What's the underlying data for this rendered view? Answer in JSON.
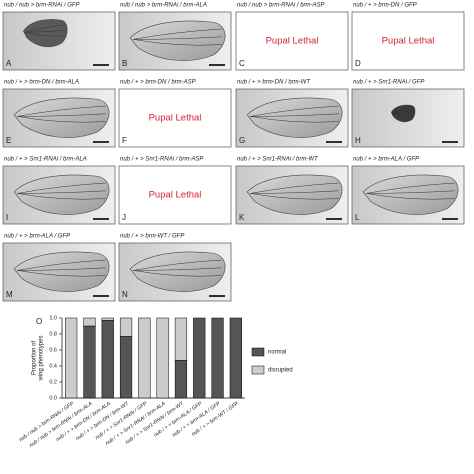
{
  "panels": [
    {
      "label": "nub / nub > brm-RNAi / GFP",
      "letter": "A"
    },
    {
      "label": "nub / nub > brm-RNAi / brm-ALA",
      "letter": "B"
    },
    {
      "label": "nub / nub > brm-RNAi / brm-ASP",
      "letter": "C",
      "note": "Pupal Lethal"
    },
    {
      "label": "nub / + > brm-DN / GFP",
      "letter": "D",
      "note": "Pupal Lethal"
    },
    {
      "label": "nub / + > brm-DN / brm-ALA",
      "letter": "E"
    },
    {
      "label": "nub / + > brm-DN / brm-ASP",
      "letter": "F",
      "note": "Pupal Lethal"
    },
    {
      "label": "nub / + > brm-DN / brm-WT",
      "letter": "G"
    },
    {
      "label": "nub / + > Snr1-RNAi / GFP",
      "letter": "H"
    },
    {
      "label": "nub / + > Snr1-RNAi / brm-ALA",
      "letter": "I"
    },
    {
      "label": "nub / + > Snr1-RNAi / brm-ASP",
      "letter": "J",
      "note": "Pupal Lethal"
    },
    {
      "label": "nub / + > Snr1-RNAi / brm-WT",
      "letter": "K"
    },
    {
      "label": "nub / + > brm-ALA / GFP",
      "letter": "L"
    },
    {
      "label": "nub / + > brm-ALA / GFP",
      "letter": "M"
    },
    {
      "label": "nub / + > brm-WT / GFP",
      "letter": "N"
    }
  ],
  "chart_data": {
    "type": "bar",
    "stacked": true,
    "panel_letter": "O",
    "y_label": [
      "Proportion of",
      "wing phenotypes"
    ],
    "categories": [
      "nub / nub > brm-RNAi / GFP",
      "nub / nub > brm-RNAi / brm-ALA",
      "nub / + > brm-DN / brm-ALA",
      "nub / + > brm-DN / brm-WT",
      "nub / + > Snr1-RNAi / GFP",
      "nub / + > Snr1-RNAi / brm-ALA",
      "nub / + > Snr1-RNAi / brm-WT",
      "nub / + > brm-ALA / GFP",
      "nub / + > brm-ALA / GFP",
      "nub / + > brm-WT / GFP"
    ],
    "series": [
      {
        "name": "normal",
        "color": "#555555",
        "values": [
          0,
          0.9,
          0.97,
          0.77,
          0,
          0,
          0.47,
          1,
          1,
          1
        ]
      },
      {
        "name": "disrupted",
        "color": "#cccccc",
        "values": [
          1,
          0.1,
          0.03,
          0.23,
          1,
          1,
          0.53,
          0,
          0,
          0
        ]
      }
    ],
    "ylim": [
      0,
      1
    ],
    "yticks": [
      {
        "value": 0,
        "label": "0.0"
      },
      0.2,
      0.4,
      0.6,
      0.8,
      {
        "value": 1,
        "label": "1.0"
      }
    ]
  }
}
